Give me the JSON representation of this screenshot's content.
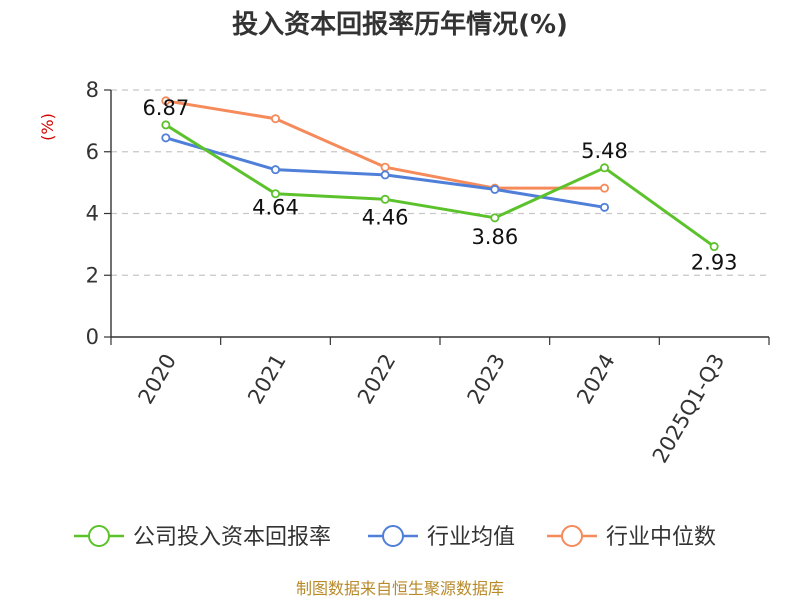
{
  "chart_data": {
    "type": "line",
    "title": "投入资本回报率历年情况(%)",
    "ylabel": "(%)",
    "xlabel": "",
    "ylim": [
      0,
      8
    ],
    "yticks": [
      0,
      2,
      4,
      6,
      8
    ],
    "categories": [
      "2020",
      "2021",
      "2022",
      "2023",
      "2024",
      "2025Q1-Q3"
    ],
    "series": [
      {
        "name": "公司投入资本回报率",
        "color": "#5cc22c",
        "values": [
          6.87,
          4.64,
          4.46,
          3.86,
          5.48,
          2.93
        ],
        "labels": [
          "6.87",
          "4.64",
          "4.46",
          "3.86",
          "5.48",
          "2.93"
        ]
      },
      {
        "name": "行业均值",
        "color": "#4f7fd9",
        "values": [
          6.45,
          5.42,
          5.25,
          4.78,
          4.2,
          null
        ]
      },
      {
        "name": "行业中位数",
        "color": "#f58a5a",
        "values": [
          7.65,
          7.07,
          5.5,
          4.82,
          4.82,
          null
        ]
      }
    ],
    "grid": true,
    "legend_position": "bottom"
  },
  "footer": {
    "source": "制图数据来自恒生聚源数据库"
  }
}
